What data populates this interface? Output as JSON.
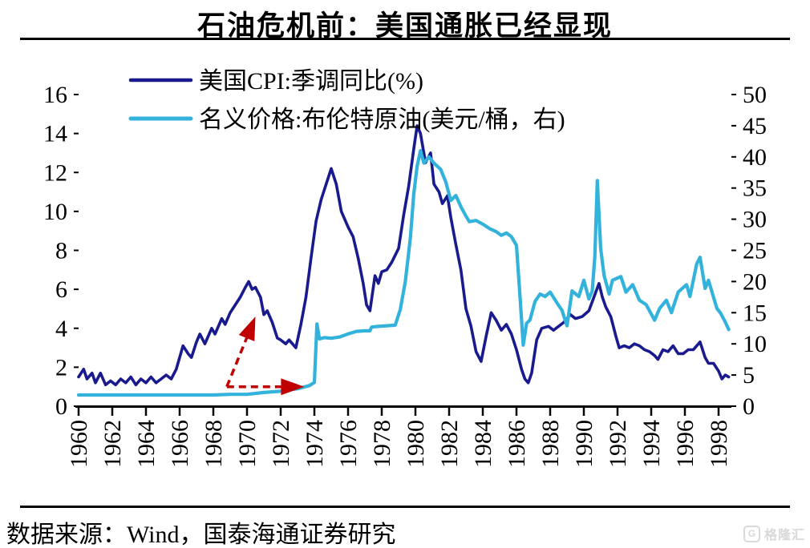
{
  "title": "石油危机前：美国通胀已经显现",
  "source_note": "数据来源：Wind，国泰海通证券研究",
  "watermark": {
    "icon": "G",
    "text": "格隆汇"
  },
  "colors": {
    "cpi": "#1A1A8F",
    "brent": "#33B3DC",
    "arrow": "#C00000",
    "axis": "#000000",
    "watermark": "#D9D9D9"
  },
  "chart_data": {
    "type": "line",
    "grid": false,
    "legend_position": "top-left",
    "x_axis": {
      "min": 1960,
      "max": 1999.3,
      "tick_step_years": 2,
      "ticks": [
        1960,
        1962,
        1964,
        1966,
        1968,
        1970,
        1972,
        1974,
        1976,
        1978,
        1980,
        1982,
        1984,
        1986,
        1988,
        1990,
        1992,
        1994,
        1996,
        1998
      ]
    },
    "y_left": {
      "min": 0,
      "max": 16,
      "step": 2,
      "ticks": [
        0,
        2,
        4,
        6,
        8,
        10,
        12,
        14,
        16
      ]
    },
    "y_right": {
      "min": 0,
      "max": 50,
      "step": 5,
      "ticks": [
        0,
        5,
        10,
        15,
        20,
        25,
        30,
        35,
        40,
        45,
        50
      ]
    },
    "series": [
      {
        "name": "美国CPI:季调同比(%)",
        "axis": "left",
        "color_key": "cpi",
        "stroke_width": 3.6,
        "points": [
          [
            1960.0,
            1.5
          ],
          [
            1960.3,
            1.9
          ],
          [
            1960.5,
            1.4
          ],
          [
            1960.8,
            1.7
          ],
          [
            1961.0,
            1.2
          ],
          [
            1961.3,
            1.7
          ],
          [
            1961.6,
            1.1
          ],
          [
            1961.9,
            1.3
          ],
          [
            1962.2,
            1.1
          ],
          [
            1962.5,
            1.4
          ],
          [
            1962.8,
            1.2
          ],
          [
            1963.1,
            1.5
          ],
          [
            1963.4,
            1.1
          ],
          [
            1963.7,
            1.4
          ],
          [
            1964.0,
            1.2
          ],
          [
            1964.3,
            1.5
          ],
          [
            1964.6,
            1.2
          ],
          [
            1964.9,
            1.4
          ],
          [
            1965.2,
            1.6
          ],
          [
            1965.5,
            1.4
          ],
          [
            1965.8,
            1.9
          ],
          [
            1966.2,
            3.1
          ],
          [
            1966.5,
            2.7
          ],
          [
            1966.7,
            2.5
          ],
          [
            1967.0,
            3.3
          ],
          [
            1967.2,
            3.7
          ],
          [
            1967.5,
            3.2
          ],
          [
            1967.7,
            3.6
          ],
          [
            1967.9,
            4.0
          ],
          [
            1968.1,
            3.7
          ],
          [
            1968.3,
            4.1
          ],
          [
            1968.5,
            4.5
          ],
          [
            1968.7,
            4.2
          ],
          [
            1969.0,
            4.8
          ],
          [
            1969.3,
            5.2
          ],
          [
            1969.6,
            5.6
          ],
          [
            1969.9,
            6.1
          ],
          [
            1970.1,
            6.4
          ],
          [
            1970.3,
            6.0
          ],
          [
            1970.5,
            6.1
          ],
          [
            1970.8,
            5.6
          ],
          [
            1971.0,
            4.7
          ],
          [
            1971.2,
            4.9
          ],
          [
            1971.5,
            4.3
          ],
          [
            1971.8,
            3.5
          ],
          [
            1972.0,
            3.4
          ],
          [
            1972.3,
            3.2
          ],
          [
            1972.5,
            3.4
          ],
          [
            1972.9,
            3.0
          ],
          [
            1973.2,
            4.2
          ],
          [
            1973.5,
            5.6
          ],
          [
            1973.8,
            7.6
          ],
          [
            1974.1,
            9.5
          ],
          [
            1974.4,
            10.6
          ],
          [
            1974.7,
            11.4
          ],
          [
            1975.0,
            12.2
          ],
          [
            1975.3,
            11.4
          ],
          [
            1975.6,
            10.0
          ],
          [
            1976.0,
            9.2
          ],
          [
            1976.3,
            8.7
          ],
          [
            1976.6,
            7.6
          ],
          [
            1976.9,
            6.3
          ],
          [
            1977.1,
            5.2
          ],
          [
            1977.3,
            4.9
          ],
          [
            1977.6,
            6.7
          ],
          [
            1977.8,
            6.3
          ],
          [
            1978.0,
            6.9
          ],
          [
            1978.3,
            7.0
          ],
          [
            1978.6,
            7.4
          ],
          [
            1979.0,
            8.1
          ],
          [
            1979.3,
            9.8
          ],
          [
            1979.6,
            11.3
          ],
          [
            1979.9,
            13.2
          ],
          [
            1980.1,
            14.4
          ],
          [
            1980.3,
            14.0
          ],
          [
            1980.6,
            12.5
          ],
          [
            1980.9,
            13.0
          ],
          [
            1981.1,
            11.4
          ],
          [
            1981.4,
            11.0
          ],
          [
            1981.6,
            10.4
          ],
          [
            1981.9,
            10.8
          ],
          [
            1982.1,
            9.7
          ],
          [
            1982.4,
            8.3
          ],
          [
            1982.7,
            7.0
          ],
          [
            1983.0,
            5.0
          ],
          [
            1983.3,
            4.1
          ],
          [
            1983.6,
            2.8
          ],
          [
            1983.9,
            2.3
          ],
          [
            1984.2,
            3.6
          ],
          [
            1984.5,
            4.8
          ],
          [
            1984.8,
            4.4
          ],
          [
            1985.1,
            3.9
          ],
          [
            1985.4,
            4.2
          ],
          [
            1985.7,
            3.7
          ],
          [
            1986.0,
            2.9
          ],
          [
            1986.3,
            1.9
          ],
          [
            1986.5,
            1.4
          ],
          [
            1986.7,
            1.2
          ],
          [
            1986.9,
            1.7
          ],
          [
            1987.2,
            3.4
          ],
          [
            1987.5,
            4.0
          ],
          [
            1987.9,
            4.1
          ],
          [
            1988.2,
            3.9
          ],
          [
            1988.5,
            4.1
          ],
          [
            1988.8,
            4.3
          ],
          [
            1989.2,
            4.7
          ],
          [
            1989.5,
            4.5
          ],
          [
            1989.9,
            4.6
          ],
          [
            1990.3,
            4.9
          ],
          [
            1990.6,
            5.6
          ],
          [
            1990.9,
            6.3
          ],
          [
            1991.1,
            5.6
          ],
          [
            1991.3,
            5.1
          ],
          [
            1991.6,
            4.6
          ],
          [
            1991.9,
            3.6
          ],
          [
            1992.1,
            3.0
          ],
          [
            1992.4,
            3.1
          ],
          [
            1992.7,
            3.0
          ],
          [
            1993.0,
            3.2
          ],
          [
            1993.3,
            3.1
          ],
          [
            1993.6,
            2.9
          ],
          [
            1993.9,
            2.8
          ],
          [
            1994.2,
            2.6
          ],
          [
            1994.4,
            2.4
          ],
          [
            1994.7,
            2.9
          ],
          [
            1995.0,
            2.8
          ],
          [
            1995.3,
            3.1
          ],
          [
            1995.6,
            2.7
          ],
          [
            1995.9,
            2.7
          ],
          [
            1996.2,
            2.9
          ],
          [
            1996.5,
            2.9
          ],
          [
            1996.9,
            3.3
          ],
          [
            1997.2,
            2.5
          ],
          [
            1997.4,
            2.2
          ],
          [
            1997.7,
            2.2
          ],
          [
            1998.0,
            1.8
          ],
          [
            1998.2,
            1.4
          ],
          [
            1998.4,
            1.6
          ],
          [
            1998.6,
            1.5
          ]
        ]
      },
      {
        "name": "名义价格:布伦特原油(美元/桶，右)",
        "axis": "right",
        "color_key": "brent",
        "stroke_width": 4.2,
        "points": [
          [
            1960.0,
            1.8
          ],
          [
            1961.0,
            1.8
          ],
          [
            1962.0,
            1.8
          ],
          [
            1963.0,
            1.8
          ],
          [
            1964.0,
            1.8
          ],
          [
            1965.0,
            1.8
          ],
          [
            1966.0,
            1.8
          ],
          [
            1967.0,
            1.8
          ],
          [
            1968.0,
            1.8
          ],
          [
            1969.0,
            1.9
          ],
          [
            1970.0,
            1.9
          ],
          [
            1971.0,
            2.2
          ],
          [
            1972.0,
            2.4
          ],
          [
            1973.0,
            2.8
          ],
          [
            1973.7,
            3.3
          ],
          [
            1974.0,
            3.8
          ],
          [
            1974.15,
            13.2
          ],
          [
            1974.3,
            10.8
          ],
          [
            1974.6,
            11.0
          ],
          [
            1975.0,
            10.9
          ],
          [
            1975.5,
            11.1
          ],
          [
            1976.0,
            11.6
          ],
          [
            1976.5,
            12.0
          ],
          [
            1977.0,
            12.1
          ],
          [
            1977.3,
            12.1
          ],
          [
            1977.4,
            12.7
          ],
          [
            1977.8,
            12.8
          ],
          [
            1978.3,
            12.9
          ],
          [
            1978.8,
            13.0
          ],
          [
            1979.1,
            15.5
          ],
          [
            1979.4,
            20.0
          ],
          [
            1979.7,
            27.0
          ],
          [
            1979.9,
            34.0
          ],
          [
            1980.1,
            38.5
          ],
          [
            1980.3,
            41.0
          ],
          [
            1980.5,
            39.0
          ],
          [
            1980.8,
            40.0
          ],
          [
            1981.1,
            39.0
          ],
          [
            1981.5,
            38.0
          ],
          [
            1981.8,
            36.0
          ],
          [
            1982.1,
            33.0
          ],
          [
            1982.4,
            33.8
          ],
          [
            1982.7,
            32.0
          ],
          [
            1983.0,
            30.5
          ],
          [
            1983.2,
            29.6
          ],
          [
            1983.6,
            29.8
          ],
          [
            1984.0,
            29.2
          ],
          [
            1984.4,
            28.5
          ],
          [
            1984.8,
            28.0
          ],
          [
            1985.1,
            27.4
          ],
          [
            1985.4,
            27.8
          ],
          [
            1985.7,
            27.2
          ],
          [
            1986.0,
            25.8
          ],
          [
            1986.2,
            18.0
          ],
          [
            1986.4,
            9.8
          ],
          [
            1986.6,
            13.3
          ],
          [
            1986.8,
            13.8
          ],
          [
            1987.1,
            16.8
          ],
          [
            1987.4,
            18.0
          ],
          [
            1987.7,
            17.6
          ],
          [
            1988.0,
            18.3
          ],
          [
            1988.4,
            16.6
          ],
          [
            1988.7,
            15.4
          ],
          [
            1989.0,
            12.9
          ],
          [
            1989.3,
            18.5
          ],
          [
            1989.7,
            17.6
          ],
          [
            1990.0,
            20.2
          ],
          [
            1990.3,
            17.2
          ],
          [
            1990.5,
            18.5
          ],
          [
            1990.65,
            24.0
          ],
          [
            1990.8,
            36.2
          ],
          [
            1991.0,
            25.3
          ],
          [
            1991.2,
            21.0
          ],
          [
            1991.5,
            18.0
          ],
          [
            1991.7,
            20.2
          ],
          [
            1992.2,
            20.8
          ],
          [
            1992.5,
            18.3
          ],
          [
            1992.9,
            19.5
          ],
          [
            1993.3,
            17.0
          ],
          [
            1993.7,
            16.3
          ],
          [
            1994.2,
            13.8
          ],
          [
            1994.5,
            15.7
          ],
          [
            1994.9,
            17.0
          ],
          [
            1995.2,
            15.0
          ],
          [
            1995.6,
            18.3
          ],
          [
            1996.1,
            19.5
          ],
          [
            1996.3,
            17.6
          ],
          [
            1996.7,
            22.8
          ],
          [
            1996.9,
            23.9
          ],
          [
            1997.2,
            18.9
          ],
          [
            1997.4,
            20.2
          ],
          [
            1997.9,
            15.7
          ],
          [
            1998.1,
            15.0
          ],
          [
            1998.4,
            13.5
          ],
          [
            1998.6,
            12.3
          ]
        ]
      }
    ],
    "annotations": [
      {
        "type": "arrow",
        "style": "dashed",
        "axis": "left",
        "from": [
          1968.8,
          1.0
        ],
        "to": [
          1973.4,
          1.0
        ]
      },
      {
        "type": "arrow",
        "style": "dashed",
        "axis": "left",
        "from": [
          1968.8,
          1.0
        ],
        "to": [
          1970.5,
          4.6
        ]
      }
    ]
  }
}
